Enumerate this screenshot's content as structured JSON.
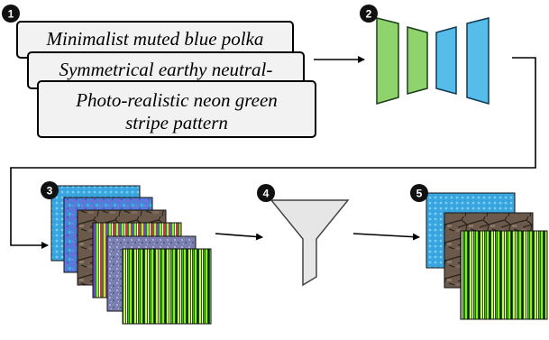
{
  "prompts": [
    "Minimalist muted blue polka",
    "Symmetrical earthy neutral-",
    "Photo-realistic neon green",
    "stripe pattern"
  ],
  "steps": [
    "1",
    "2",
    "3",
    "4",
    "5"
  ],
  "colors": {
    "encoder_green": "#8ed36b",
    "decoder_blue": "#56bdea",
    "funnel_fill": "#e6e6e6",
    "badge_fill": "#111111",
    "card_fill": "#f2f2f2"
  }
}
